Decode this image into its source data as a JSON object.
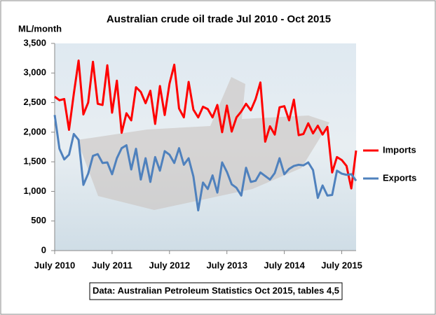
{
  "chart_data": {
    "type": "line",
    "title": "Australian crude oil trade Jul 2010 - Oct 2015",
    "y_axis_label": "ML/month",
    "note": "Data: Australian Petroleum Statistics Oct 2015, tables 4,5",
    "categories": [
      "July 2010",
      null,
      null,
      null,
      null,
      null,
      null,
      null,
      null,
      null,
      null,
      null,
      "July 2011",
      null,
      null,
      null,
      null,
      null,
      null,
      null,
      null,
      null,
      null,
      null,
      "July 2012",
      null,
      null,
      null,
      null,
      null,
      null,
      null,
      null,
      null,
      null,
      null,
      "July 2013",
      null,
      null,
      null,
      null,
      null,
      null,
      null,
      null,
      null,
      null,
      null,
      "July 2014",
      null,
      null,
      null,
      null,
      null,
      null,
      null,
      null,
      null,
      null,
      null,
      "July 2015",
      null,
      null,
      null
    ],
    "series": [
      {
        "name": "Imports",
        "color": "#ff0000",
        "values": [
          2600,
          2540,
          2560,
          2040,
          2650,
          3210,
          2300,
          2500,
          3190,
          2480,
          2460,
          3130,
          2330,
          2870,
          1990,
          2320,
          2200,
          2760,
          2680,
          2490,
          2700,
          2140,
          2780,
          2290,
          2820,
          3140,
          2400,
          2250,
          2850,
          2380,
          2250,
          2430,
          2390,
          2250,
          2460,
          2000,
          2450,
          2010,
          2250,
          2350,
          2480,
          2370,
          2560,
          2840,
          1840,
          2100,
          1960,
          2420,
          2440,
          2200,
          2550,
          1950,
          1970,
          2150,
          1980,
          2110,
          1960,
          2090,
          1320,
          1580,
          1530,
          1430,
          1050,
          1690
        ]
      },
      {
        "name": "Exports",
        "color": "#4f81bd",
        "values": [
          2290,
          1720,
          1540,
          1620,
          1970,
          1870,
          1110,
          1300,
          1600,
          1630,
          1480,
          1490,
          1290,
          1560,
          1730,
          1780,
          1370,
          1720,
          1200,
          1560,
          1160,
          1580,
          1350,
          1680,
          1620,
          1480,
          1730,
          1450,
          1560,
          1250,
          680,
          1150,
          1040,
          1270,
          980,
          1490,
          1330,
          1120,
          1060,
          930,
          1400,
          1160,
          1180,
          1320,
          1260,
          1200,
          1310,
          1560,
          1290,
          1380,
          1430,
          1450,
          1440,
          1490,
          1360,
          890,
          1100,
          930,
          940,
          1350,
          1300,
          1280,
          1290,
          1180
        ]
      }
    ],
    "ylim": [
      0,
      3500
    ],
    "yticks": [
      0,
      500,
      {
        "value": 1000,
        "label": "1,000"
      },
      {
        "value": 1500,
        "label": "1,500"
      },
      {
        "value": 2000,
        "label": "2,000"
      },
      {
        "value": 2500,
        "label": "2,500"
      },
      {
        "value": 3000,
        "label": "3,000"
      },
      {
        "value": 3500,
        "label": "3,500"
      }
    ],
    "grid": false,
    "legend": "right"
  }
}
